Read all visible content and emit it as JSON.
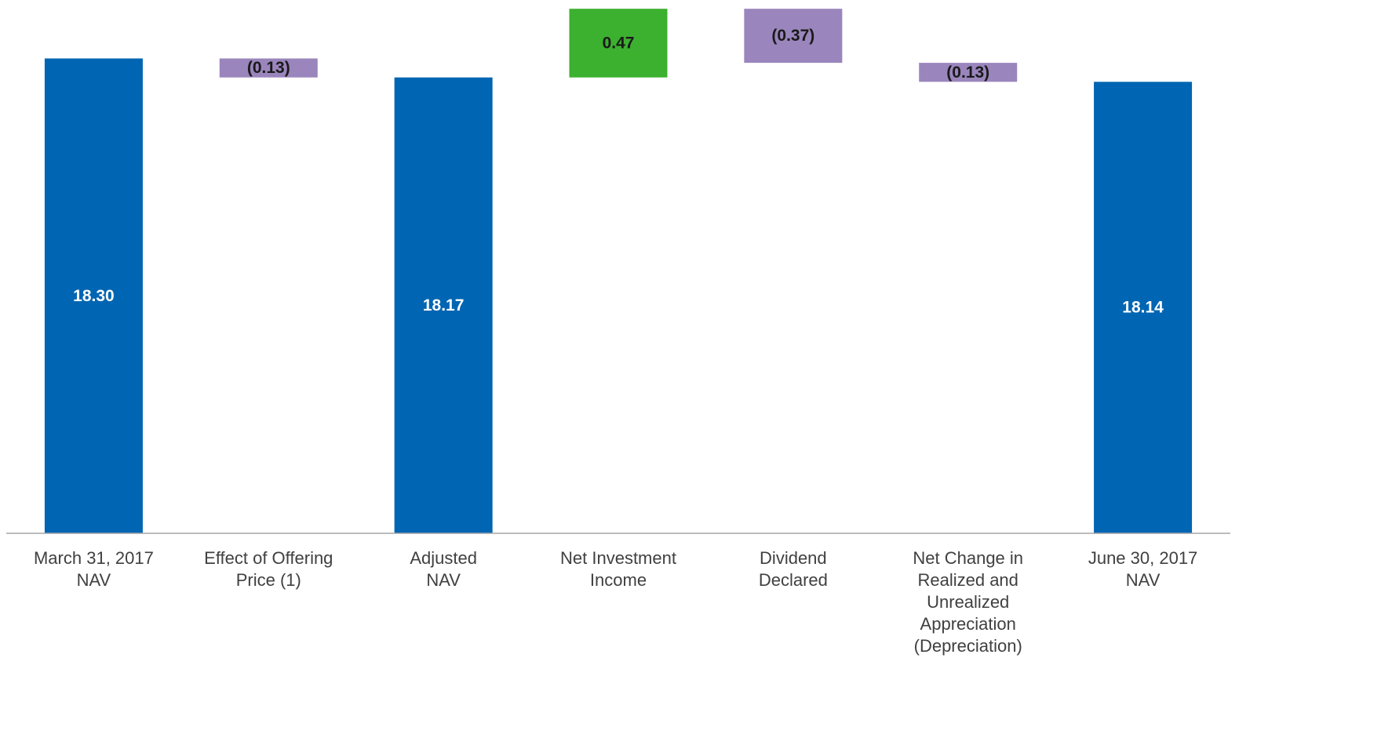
{
  "chart_data": {
    "type": "waterfall",
    "categories": [
      [
        "March 31, 2017",
        "NAV"
      ],
      [
        "Effect of Offering",
        "Price (1)"
      ],
      [
        "Adjusted",
        "NAV"
      ],
      [
        "Net Investment",
        "Income"
      ],
      [
        "Dividend",
        "Declared"
      ],
      [
        "Net Change in",
        "Realized and",
        "Unrealized",
        "Appreciation",
        "(Depreciation)"
      ],
      [
        "June 30, 2017",
        "NAV"
      ]
    ],
    "values": [
      18.3,
      -0.13,
      18.17,
      0.47,
      -0.37,
      -0.13,
      18.14
    ],
    "value_labels": [
      "18.30",
      "(0.13)",
      "18.17",
      "0.47",
      "(0.37)",
      "(0.13)",
      "18.14"
    ],
    "measure": [
      "total",
      "relative",
      "total",
      "relative",
      "relative",
      "relative",
      "total"
    ],
    "colors": {
      "total": "#0065b2",
      "increase": "#3cb02f",
      "decrease": "#9a85bc"
    },
    "ylim": [
      15.05,
      18.7
    ]
  }
}
